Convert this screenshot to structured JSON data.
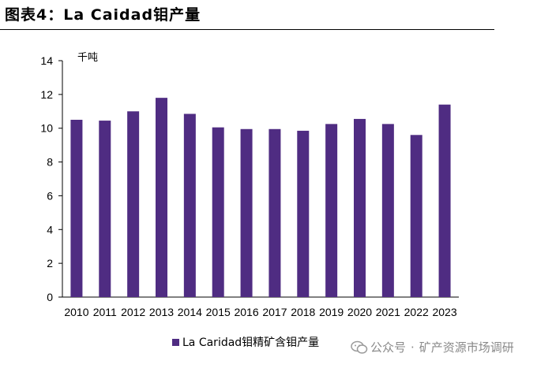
{
  "figure_title": "图表4：La Caidad钼产量",
  "chart_data": {
    "type": "bar",
    "title": "图表4：La Caidad钼产量",
    "unit_label": "千吨",
    "xlabel": "",
    "ylabel": "千吨",
    "categories": [
      "2010",
      "2011",
      "2012",
      "2013",
      "2014",
      "2015",
      "2016",
      "2017",
      "2018",
      "2019",
      "2020",
      "2021",
      "2022",
      "2023"
    ],
    "series": [
      {
        "name": "La Caridad钼精矿含钼产量",
        "values": [
          10.5,
          10.45,
          11.0,
          11.8,
          10.85,
          10.05,
          9.95,
          9.95,
          9.85,
          10.25,
          10.55,
          10.25,
          9.6,
          11.4
        ]
      }
    ],
    "ylim": [
      0,
      14
    ],
    "yticks": [
      0,
      2,
      4,
      6,
      8,
      10,
      12,
      14
    ],
    "grid": false,
    "legend_position": "bottom-center",
    "bar_color": "#4f2c82"
  },
  "legend": {
    "label": "La Caridad钼精矿含钼产量"
  },
  "watermark": {
    "text_left": "公众号",
    "separator": "·",
    "text_right": "矿产资源市场调研"
  }
}
